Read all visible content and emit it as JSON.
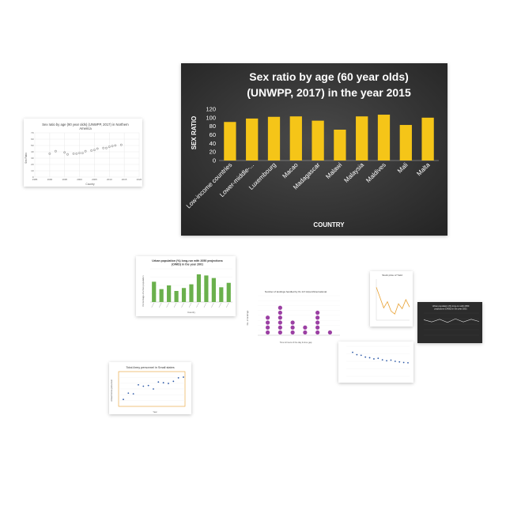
{
  "colors": {
    "main_bg": "#333333",
    "bar_fill": "#f5c518",
    "thumb_green": "#6ab04c",
    "thumb_purple": "#9b3fa3",
    "thumb_blue": "#2e5aa8",
    "thumb_orange": "#e8a030",
    "thumb_grey_points": "#9a9a9a"
  },
  "chart_data": [
    {
      "id": "main",
      "type": "bar",
      "title_line1": "Sex ratio by age (60 year olds)",
      "title_line2": "(UNWPP, 2017) in the year 2015",
      "xlabel": "COUNTRY",
      "ylabel": "SEX RATIO",
      "categories": [
        "Low-income countries",
        "Lower-middle-...",
        "Luxembourg",
        "Macao",
        "Madagascar",
        "Malawi",
        "Malaysia",
        "Maldives",
        "Mali",
        "Malta"
      ],
      "values": [
        90,
        98,
        102,
        103,
        93,
        72,
        103,
        107,
        83,
        100
      ],
      "yticks": [
        0,
        20,
        40,
        60,
        80,
        100,
        120
      ],
      "ylim": [
        0,
        120
      ],
      "grid": false
    },
    {
      "id": "thumb-sex-ratio-na",
      "type": "scatter",
      "title_line1": "Sex ratio by age (90 year olds) (UNWPP, 2017) in Northern",
      "title_line2": "America",
      "xlabel": "Country",
      "ylabel": "Sex Ratio",
      "x": [
        1990,
        1992,
        1995,
        1996,
        1998,
        1999,
        2000,
        2001,
        2002,
        2004,
        2005,
        2006,
        2008,
        2009,
        2010,
        2011,
        2012,
        2014
      ],
      "y": [
        37,
        41,
        39,
        36,
        37,
        37,
        38,
        38,
        41,
        42,
        43,
        45,
        46,
        46,
        48,
        49,
        50,
        51
      ],
      "xticks": [
        1985,
        1990,
        1995,
        2000,
        2005,
        2010,
        2015,
        2020
      ],
      "yticks": [
        0,
        10,
        20,
        30,
        40,
        50,
        60,
        70
      ],
      "xlim": [
        1985,
        2020
      ],
      "ylim": [
        0,
        70
      ]
    },
    {
      "id": "thumb-urban",
      "type": "bar",
      "title_line1": "Urban population (%) long-run with 2050 projections",
      "title_line2": "(OWID) in the year 2001",
      "xlabel": "Country",
      "ylabel": "Percentage of urban population",
      "categories": [
        "A",
        "B",
        "C",
        "D",
        "E",
        "F",
        "G",
        "H",
        "I",
        "J",
        "K"
      ],
      "values": [
        55,
        35,
        45,
        30,
        38,
        48,
        75,
        72,
        65,
        40,
        52
      ],
      "ylim": [
        0,
        90
      ]
    },
    {
      "id": "thumb-landings",
      "type": "scatter",
      "title_line1": "Number of landings handled by KL Int'l Airport/International",
      "xlabel": "Time & hours of the day & time gap",
      "ylabel": "No. of landings",
      "categories": [
        "A",
        "B",
        "C",
        "D",
        "E",
        "F"
      ],
      "values": [
        4,
        6,
        3,
        2,
        5,
        1
      ],
      "ylim": [
        0,
        8
      ]
    },
    {
      "id": "thumb-yield",
      "type": "line",
      "title_line1": "Stock price of Yield",
      "values": [
        80,
        55,
        30,
        45,
        22,
        15,
        40,
        28,
        50,
        32
      ],
      "ylim": [
        0,
        100
      ]
    },
    {
      "id": "thumb-dark-urban",
      "type": "line",
      "title_line1": "Urban population (%) long-run with 2050",
      "title_line2": "projections (OWID) in the year 2001",
      "values": [
        70,
        60,
        72,
        58,
        74,
        60,
        72,
        62
      ],
      "ylim": [
        0,
        100
      ]
    },
    {
      "id": "thumb-blue-scatter",
      "type": "scatter",
      "values": [
        80,
        72,
        70,
        64,
        62,
        58,
        60,
        55,
        52,
        54,
        50,
        48,
        46,
        45
      ],
      "ylim": [
        0,
        100
      ]
    },
    {
      "id": "thumb-army",
      "type": "scatter",
      "title_line1": "Total Army personnel in Small states",
      "xlabel": "Year",
      "ylabel": "Armed forces personnel",
      "values": [
        20,
        38,
        36,
        62,
        58,
        60,
        50,
        70,
        68,
        66,
        72,
        82,
        84
      ],
      "ylim": [
        0,
        100
      ]
    }
  ]
}
